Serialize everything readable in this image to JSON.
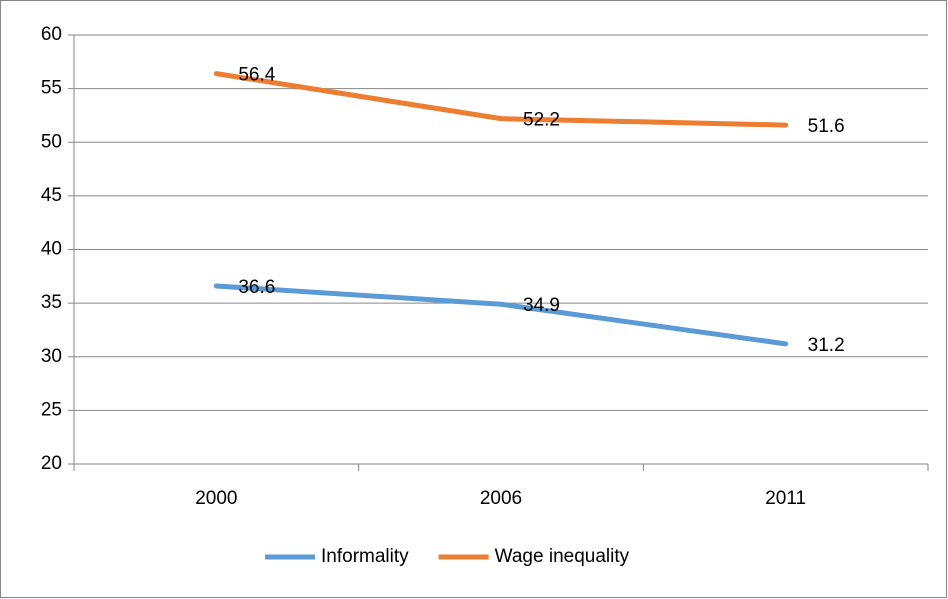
{
  "chart_data": {
    "type": "line",
    "categories": [
      "2000",
      "2006",
      "2011"
    ],
    "series": [
      {
        "name": "Informality",
        "color": "#5b9bd5",
        "values": [
          36.6,
          34.9,
          31.2
        ]
      },
      {
        "name": "Wage inequality",
        "color": "#ed7d31",
        "values": [
          56.4,
          52.2,
          51.6
        ]
      }
    ],
    "ylim": [
      20,
      60
    ],
    "yticks": [
      20,
      25,
      30,
      35,
      40,
      45,
      50,
      55,
      60
    ],
    "grid": true,
    "legend": "bottom",
    "data_labels": true
  }
}
